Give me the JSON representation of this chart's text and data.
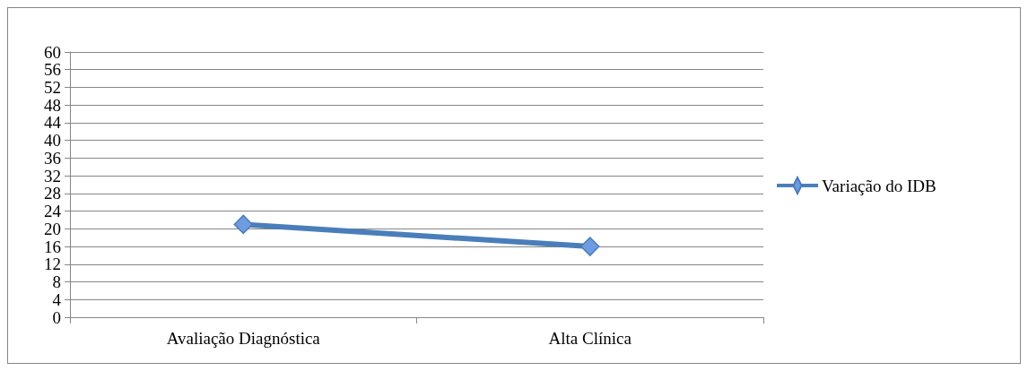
{
  "chart_data": {
    "type": "line",
    "categories": [
      "Avaliação Diagnóstica",
      "Alta Clínica"
    ],
    "series": [
      {
        "name": "Variação do IDB",
        "color": "#4a7ebb",
        "values": [
          21,
          16
        ]
      }
    ],
    "ylim": [
      0,
      60
    ],
    "yticks": [
      0,
      4,
      8,
      12,
      16,
      20,
      24,
      28,
      32,
      36,
      40,
      44,
      48,
      52,
      56,
      60
    ],
    "grid": "y",
    "legend": "right",
    "marker": "diamond",
    "line_style": "solid"
  }
}
